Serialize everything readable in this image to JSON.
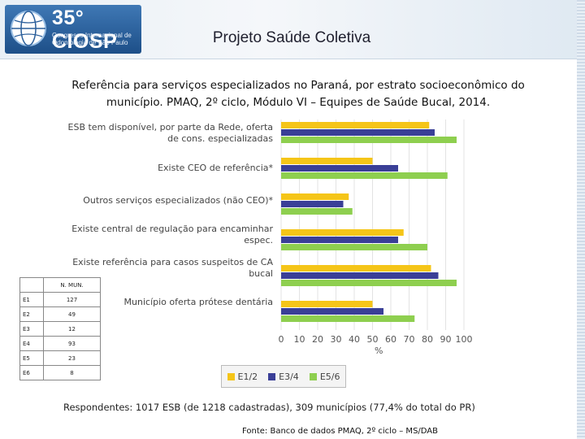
{
  "header": {
    "logo_big": "35° CIOSP",
    "logo_small": "Congresso Internacional de Odontologia de São Paulo",
    "title": "Projeto Saúde Coletiva"
  },
  "heading": "Referência para serviços especializados no Paraná, por estrato socioeconômico do município. PMAQ, 2º ciclo, Módulo VI – Equipes de Saúde Bucal, 2014.",
  "chart_data": {
    "type": "bar",
    "orientation": "horizontal",
    "categories": [
      "ESB tem disponível, por parte da Rede, oferta de cons. especializadas",
      "Existe CEO de referência*",
      "Outros serviços especializados (não CEO)*",
      "Existe central de regulação para encaminhar espec.",
      "Existe referência para casos suspeitos de CA bucal",
      "Município oferta prótese dentária"
    ],
    "series": [
      {
        "name": "E1/2",
        "color": "#f5c518",
        "values": [
          81,
          50,
          37,
          67,
          82,
          50
        ]
      },
      {
        "name": "E3/4",
        "color": "#3a3f97",
        "values": [
          84,
          64,
          34,
          64,
          86,
          56
        ]
      },
      {
        "name": "E5/6",
        "color": "#8ecf4f",
        "values": [
          96,
          91,
          39,
          80,
          96,
          73
        ]
      }
    ],
    "xlim": [
      0,
      100
    ],
    "xticks": [
      "0",
      "10",
      "20",
      "30",
      "40",
      "50",
      "60",
      "70",
      "80",
      "90",
      "100"
    ],
    "xlabel": "%",
    "legend_position": "bottom"
  },
  "mun_table": {
    "header": "N. MUN.",
    "rows": [
      {
        "estrato": "E1",
        "n": "127"
      },
      {
        "estrato": "E2",
        "n": "49"
      },
      {
        "estrato": "E3",
        "n": "12"
      },
      {
        "estrato": "E4",
        "n": "93"
      },
      {
        "estrato": "E5",
        "n": "23"
      },
      {
        "estrato": "E6",
        "n": "8"
      }
    ]
  },
  "footer": {
    "respondentes": "Respondentes: 1017 ESB (de 1218 cadastradas), 309 municípios (77,4% do total do PR)",
    "fonte": "Fonte: Banco de dados PMAQ, 2º ciclo – MS/DAB"
  }
}
